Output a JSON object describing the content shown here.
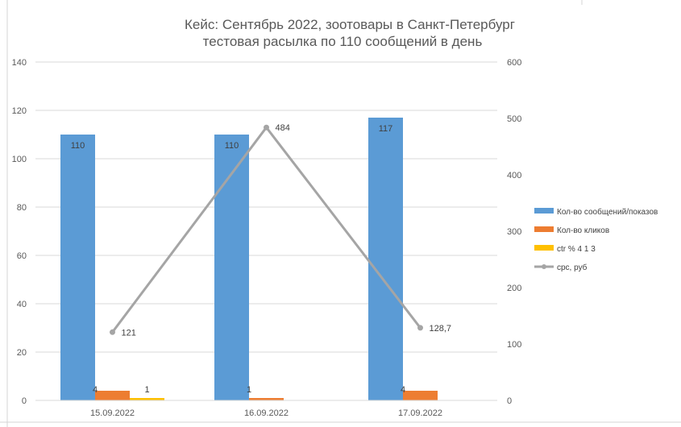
{
  "chart_data": {
    "type": "bar",
    "title_line1": "Кейс: Сентябрь 2022, зоотовары в Санкт-Петербург",
    "title_line2": "тестовая расылка по 110 сообщений в день",
    "categories": [
      "15.09.2022",
      "16.09.2022",
      "17.09.2022"
    ],
    "y_left": {
      "range": [
        0,
        140
      ],
      "ticks": [
        "0",
        "20",
        "40",
        "60",
        "80",
        "100",
        "120",
        "140"
      ]
    },
    "y_right": {
      "range": [
        0,
        600
      ],
      "ticks": [
        "0",
        "100",
        "200",
        "300",
        "400",
        "500",
        "600"
      ]
    },
    "series": [
      {
        "name": "Кол-во сообщений/показов",
        "type": "bar",
        "axis": "left",
        "color": "#5B9BD5",
        "values": [
          110,
          110,
          117
        ],
        "labels": [
          "110",
          "110",
          "117"
        ]
      },
      {
        "name": "Кол-во кликов",
        "type": "bar",
        "axis": "left",
        "color": "#ED7D31",
        "values": [
          4,
          1,
          4
        ],
        "labels": [
          "4",
          "1",
          "4"
        ]
      },
      {
        "name": "ctr % 4 1 3",
        "type": "bar",
        "axis": "left",
        "color": "#FFC000",
        "values": [
          1,
          0,
          0
        ],
        "labels": [
          "1",
          "",
          ""
        ]
      },
      {
        "name": "cpc, руб",
        "type": "line",
        "axis": "right",
        "color": "#A5A5A5",
        "values": [
          121,
          484,
          128.7
        ],
        "labels": [
          "121",
          "484",
          "128,7"
        ]
      }
    ],
    "legend_position": "right",
    "grid": true,
    "grid_axis": "y",
    "grid_color": "#D9D9D9"
  }
}
